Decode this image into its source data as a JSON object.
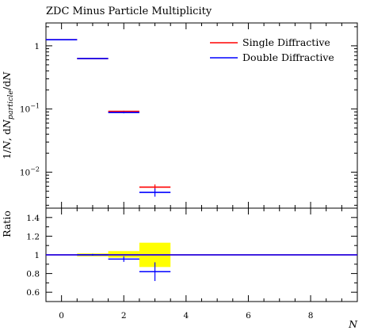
{
  "chart_data": {
    "type": "line",
    "title": "ZDC Minus Particle Multiplicity",
    "xlabel": "N",
    "ylabel": "1/N, dN_particle/dN",
    "ylabel_parts": {
      "a": "1/",
      "b": "N",
      "c": ", d",
      "d": "N",
      "e": "particle",
      "f": "/d",
      "g": "N"
    },
    "xlim": [
      -0.5,
      9.5
    ],
    "ylim": [
      0.0027,
      2.3
    ],
    "yscale": "log",
    "xticks": [
      0,
      2,
      4,
      6,
      8
    ],
    "yticks": [
      {
        "value": 1,
        "label": "1",
        "base": "",
        "exp": ""
      },
      {
        "value": 0.1,
        "label": "",
        "base": "10",
        "exp": "−1"
      },
      {
        "value": 0.01,
        "label": "",
        "base": "10",
        "exp": "−2"
      }
    ],
    "legend_position": "top-right",
    "series": [
      {
        "name": "Single Diffractive",
        "color": "#ff0000",
        "bins": [
          [
            -0.5,
            0.5
          ],
          [
            0.5,
            1.5
          ],
          [
            1.5,
            2.5
          ],
          [
            2.5,
            3.5
          ]
        ],
        "values": [
          1.25,
          0.63,
          0.092,
          0.0058
        ],
        "errors": [
          0,
          0,
          0.002,
          0.0006
        ]
      },
      {
        "name": "Double Diffractive",
        "color": "#0000ff",
        "bins": [
          [
            -0.5,
            0.5
          ],
          [
            0.5,
            1.5
          ],
          [
            1.5,
            2.5
          ],
          [
            2.5,
            3.5
          ]
        ],
        "values": [
          1.25,
          0.63,
          0.088,
          0.0048
        ],
        "errors": [
          0,
          0,
          0.0025,
          0.0007
        ]
      }
    ],
    "ratio": {
      "ylabel": "Ratio",
      "ylim": [
        0.5,
        1.5
      ],
      "yticks": [
        0.6,
        0.8,
        1,
        1.2,
        1.4
      ],
      "ytick_labels": [
        "0.6",
        "0.8",
        "1",
        "1.2",
        "1.4"
      ],
      "reference_color": "#ff0000",
      "band_color": "#ffff00",
      "band": {
        "bins": [
          [
            -0.5,
            0.5
          ],
          [
            0.5,
            1.5
          ],
          [
            1.5,
            2.5
          ],
          [
            2.5,
            3.5
          ]
        ],
        "low": [
          1.0,
          0.985,
          0.97,
          0.87
        ],
        "high": [
          1.0,
          1.015,
          1.04,
          1.13
        ]
      },
      "series_color": "#0000ff",
      "line_value": 1.0,
      "points": [
        {
          "x": 0,
          "y": 1.0,
          "err": 0.0
        },
        {
          "x": 1,
          "y": 1.0,
          "err": 0.01
        },
        {
          "x": 2,
          "y": 0.955,
          "err": 0.03
        },
        {
          "x": 3,
          "y": 0.82,
          "err": 0.1
        }
      ]
    }
  }
}
